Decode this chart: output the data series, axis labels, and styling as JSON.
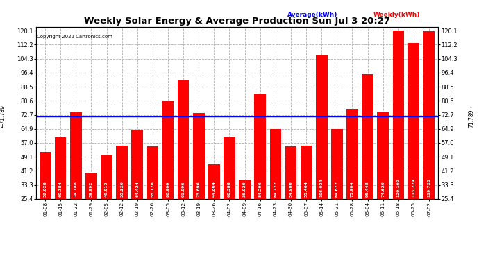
{
  "title": "Weekly Solar Energy & Average Production Sun Jul 3 20:27",
  "copyright": "Copyright 2022 Cartronics.com",
  "categories": [
    "01-08",
    "01-15",
    "01-22",
    "01-29",
    "02-05",
    "02-12",
    "02-19",
    "02-26",
    "03-05",
    "03-12",
    "03-19",
    "03-26",
    "04-02",
    "04-09",
    "04-16",
    "04-23",
    "04-30",
    "05-07",
    "05-14",
    "05-21",
    "05-28",
    "06-04",
    "06-11",
    "06-18",
    "06-25",
    "07-02"
  ],
  "values": [
    52.028,
    60.184,
    74.188,
    39.992,
    49.912,
    55.22,
    64.424,
    55.176,
    80.9,
    91.996,
    73.696,
    44.864,
    60.388,
    35.92,
    84.296,
    64.772,
    54.98,
    55.464,
    106.024,
    64.672,
    75.904,
    95.448,
    74.62,
    120.1,
    113.224,
    119.72
  ],
  "average": 71.789,
  "bar_color": "#ff0000",
  "average_line_color": "#0000ff",
  "background_color": "#ffffff",
  "plot_bg_color": "#ffffff",
  "grid_color": "#b0b0b0",
  "title_color": "#000000",
  "yticks": [
    25.4,
    33.3,
    41.2,
    49.1,
    57.0,
    64.9,
    72.7,
    80.6,
    88.5,
    96.4,
    104.3,
    112.2,
    120.1
  ],
  "average_label": "Average(kWh)",
  "weekly_label": "Weekly(kWh)",
  "average_label_color": "#0000ff",
  "weekly_label_color": "#ff0000",
  "average_annotation": "71.789",
  "bar_width": 0.75,
  "ylim": [
    25.4,
    122.0
  ]
}
